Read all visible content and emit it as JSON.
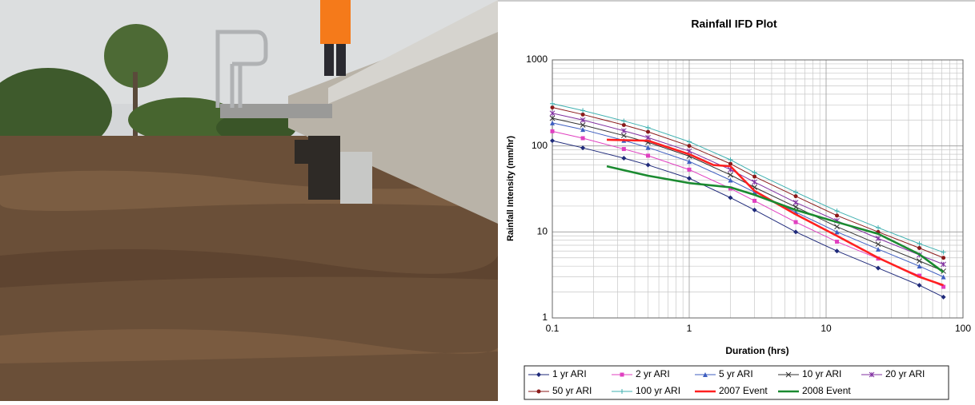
{
  "chart_data": {
    "type": "line",
    "title": "Rainfall IFD Plot",
    "x_label": "Duration (hrs)",
    "y_label": "Rainfall Intensity (mm/hr)",
    "x_scale": "log",
    "y_scale": "log",
    "grid": true,
    "xlim": [
      0.1,
      100
    ],
    "ylim": [
      1,
      1000
    ],
    "xticks": [
      0.1,
      1,
      10,
      100
    ],
    "yticks": [
      1,
      10,
      100,
      1000
    ],
    "series": [
      {
        "name": "1 yr ARI",
        "color": "#1f2a7a",
        "marker": "diamond",
        "x": [
          0.1,
          0.167,
          0.333,
          0.5,
          1,
          2,
          3,
          6,
          12,
          24,
          48,
          72
        ],
        "values": [
          115,
          95,
          72,
          60,
          42,
          25,
          18,
          10,
          6,
          3.8,
          2.4,
          1.75
        ]
      },
      {
        "name": "2 yr ARI",
        "color": "#e040c0",
        "marker": "square",
        "x": [
          0.1,
          0.167,
          0.333,
          0.5,
          1,
          2,
          3,
          6,
          12,
          24,
          48,
          72
        ],
        "values": [
          148,
          123,
          92,
          77,
          53,
          32,
          23,
          13,
          7.7,
          4.9,
          3.1,
          2.3
        ]
      },
      {
        "name": "5 yr ARI",
        "color": "#3f5fc0",
        "marker": "triangle",
        "x": [
          0.1,
          0.167,
          0.333,
          0.5,
          1,
          2,
          3,
          6,
          12,
          24,
          48,
          72
        ],
        "values": [
          185,
          155,
          116,
          96,
          66,
          40,
          29,
          17,
          10,
          6.3,
          4,
          3
        ]
      },
      {
        "name": "10 yr ARI",
        "color": "#333333",
        "marker": "x",
        "x": [
          0.1,
          0.167,
          0.333,
          0.5,
          1,
          2,
          3,
          6,
          12,
          24,
          48,
          72
        ],
        "values": [
          210,
          175,
          132,
          110,
          76,
          46,
          33,
          19.5,
          11.5,
          7.2,
          4.6,
          3.5
        ]
      },
      {
        "name": "20 yr ARI",
        "color": "#8030a0",
        "marker": "star",
        "x": [
          0.1,
          0.167,
          0.333,
          0.5,
          1,
          2,
          3,
          6,
          12,
          24,
          48,
          72
        ],
        "values": [
          240,
          200,
          150,
          125,
          87,
          53,
          38,
          22,
          13.5,
          8.4,
          5.4,
          4.2
        ]
      },
      {
        "name": "50 yr ARI",
        "color": "#8b1a1a",
        "marker": "circle",
        "x": [
          0.1,
          0.167,
          0.333,
          0.5,
          1,
          2,
          3,
          6,
          12,
          24,
          48,
          72
        ],
        "values": [
          280,
          232,
          175,
          146,
          100,
          62,
          44,
          26,
          15.5,
          10,
          6.5,
          5
        ]
      },
      {
        "name": "100 yr ARI",
        "color": "#3fb0b0",
        "marker": "plus",
        "x": [
          0.1,
          0.167,
          0.333,
          0.5,
          1,
          2,
          3,
          6,
          12,
          24,
          48,
          72
        ],
        "values": [
          310,
          258,
          195,
          163,
          112,
          69,
          49,
          29,
          17.5,
          11.2,
          7.3,
          5.8
        ]
      },
      {
        "name": "2007 Event",
        "color": "#ff2020",
        "marker": "none",
        "x": [
          0.25,
          0.5,
          1,
          1.5,
          2,
          3,
          6,
          12,
          24,
          48,
          72
        ],
        "values": [
          118,
          115,
          80,
          60,
          58,
          30,
          16,
          9,
          5,
          3,
          2.4
        ]
      },
      {
        "name": "2008 Event",
        "color": "#1a8a30",
        "marker": "none",
        "x": [
          0.25,
          0.5,
          1,
          2,
          3,
          6,
          12,
          24,
          48,
          72
        ],
        "values": [
          58,
          45,
          37,
          33,
          27,
          18,
          13,
          9.5,
          5.5,
          3.4
        ]
      }
    ]
  }
}
